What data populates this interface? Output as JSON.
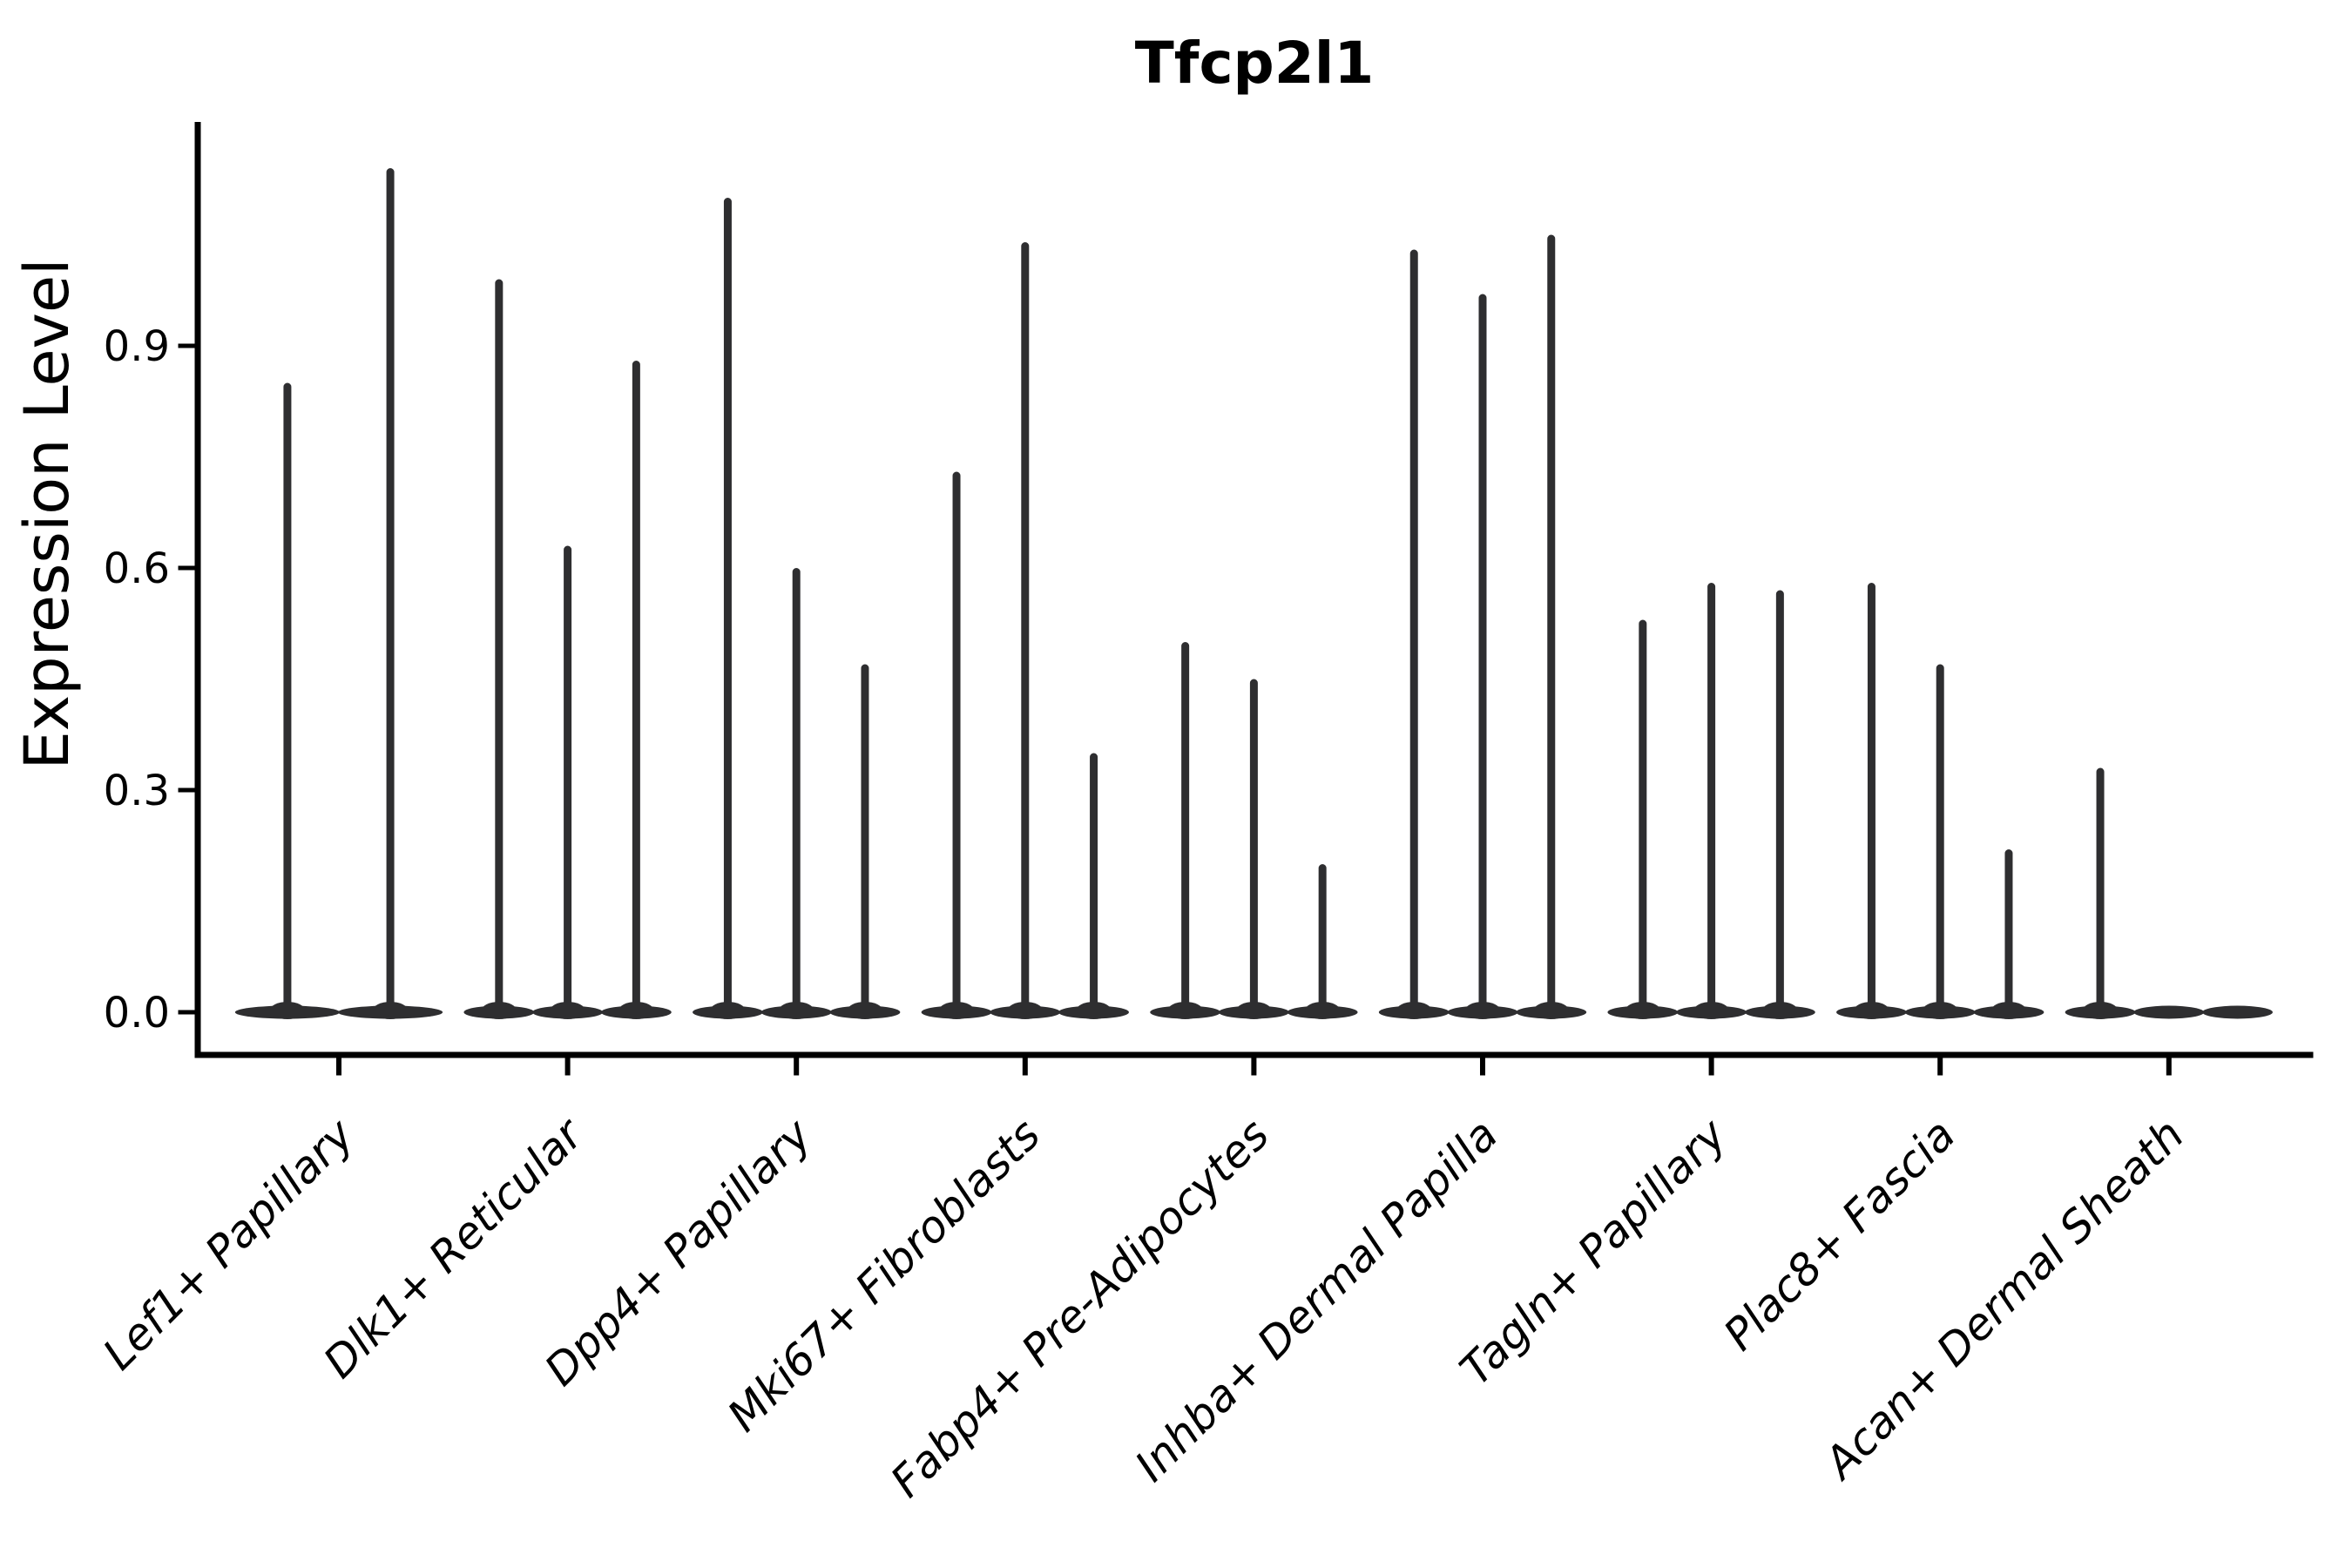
{
  "figure": {
    "title": "Tfcp2l1",
    "y_axis_label": "Expression Level"
  },
  "chart_data": {
    "type": "violin",
    "title": "Tfcp2l1",
    "xlabel": "",
    "ylabel": "Expression Level",
    "ylim": [
      0,
      1.2
    ],
    "ytick_labels": [
      "0.0",
      "0.3",
      "0.6",
      "0.9"
    ],
    "ytick_values": [
      0.0,
      0.3,
      0.6,
      0.9
    ],
    "grid": "off",
    "legend": "none",
    "orientation": "vertical",
    "categories": [
      "Lef1+ Papillary",
      "Dlk1+ Reticular",
      "Dpp4+ Papillary",
      "Mki67+ Fibroblasts",
      "Fabp4+ Pre-Adipocytes",
      "Inhba+ Dermal Papilla",
      "Tagln+ Papillary",
      "Plac8+ Fascia",
      "Acan+ Dermal Sheath"
    ],
    "series": [
      {
        "category": "Lef1+ Papillary",
        "violin_max_values": [
          0.85,
          1.14
        ]
      },
      {
        "category": "Dlk1+ Reticular",
        "violin_max_values": [
          0.99,
          0.63,
          0.88
        ]
      },
      {
        "category": "Dpp4+ Papillary",
        "violin_max_values": [
          1.1,
          0.6,
          0.47
        ]
      },
      {
        "category": "Mki67+ Fibroblasts",
        "violin_max_values": [
          0.73,
          1.04,
          0.35
        ]
      },
      {
        "category": "Fabp4+ Pre-Adipocytes",
        "violin_max_values": [
          0.5,
          0.45,
          0.2
        ]
      },
      {
        "category": "Inhba+ Dermal Papilla",
        "violin_max_values": [
          1.03,
          0.97,
          1.05
        ]
      },
      {
        "category": "Tagln+ Papillary",
        "violin_max_values": [
          0.53,
          0.58,
          0.57
        ]
      },
      {
        "category": "Plac8+ Fascia",
        "violin_max_values": [
          0.58,
          0.47,
          0.22
        ]
      },
      {
        "category": "Acan+ Dermal Sheath",
        "violin_max_values": [
          0.33,
          0.0,
          0.0
        ]
      }
    ],
    "colors": {
      "violin": "#2e2e30",
      "axis": "#000000",
      "text": "#000000",
      "background": "#ffffff"
    }
  }
}
